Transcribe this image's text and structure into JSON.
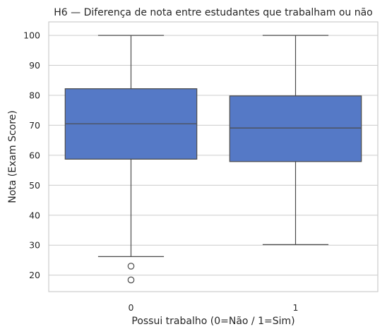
{
  "chart_data": {
    "type": "box",
    "title": "H6 — Diferença de nota entre estudantes que trabalham ou não",
    "xlabel": "Possui trabalho (0=Não / 1=Sim)",
    "ylabel": "Nota (Exam Score)",
    "categories": [
      "0",
      "1"
    ],
    "ylim": [
      14.5,
      104.5
    ],
    "yticks": [
      20,
      30,
      40,
      50,
      60,
      70,
      80,
      90,
      100
    ],
    "grid": true,
    "box_color": "#5579c6",
    "boxes": [
      {
        "category": "0",
        "whisker_low": 26.2,
        "q1": 58.7,
        "median": 70.5,
        "q3": 82.2,
        "whisker_high": 100,
        "outliers": [
          23.0,
          18.4
        ]
      },
      {
        "category": "1",
        "whisker_low": 30.2,
        "q1": 57.9,
        "median": 69.1,
        "q3": 79.8,
        "whisker_high": 100,
        "outliers": []
      }
    ]
  }
}
